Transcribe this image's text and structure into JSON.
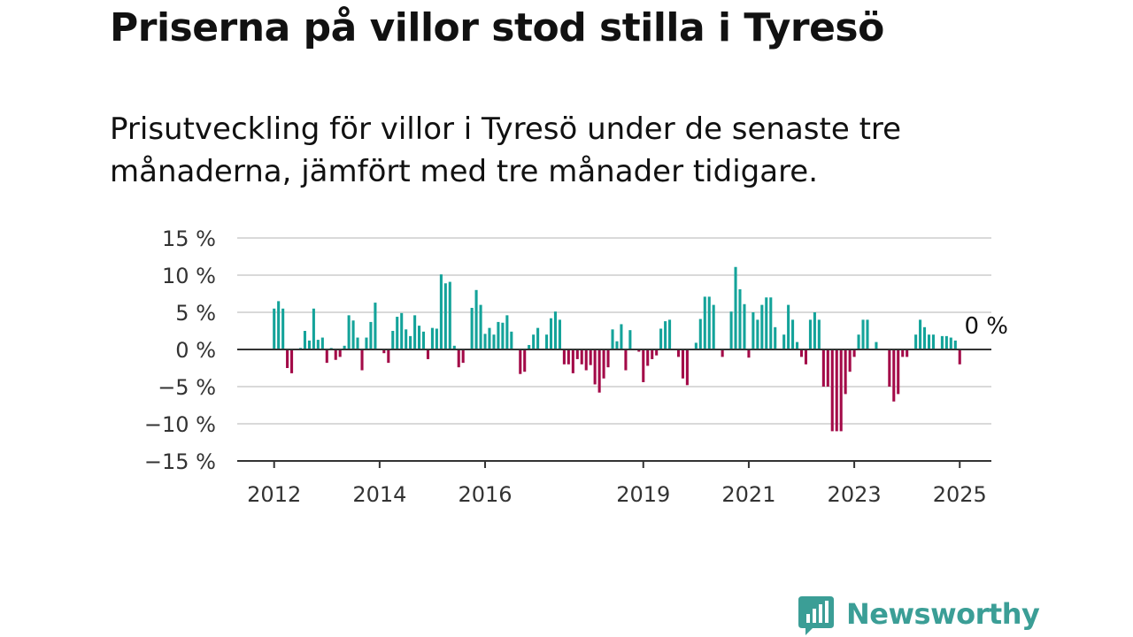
{
  "title": "Priserna på villor stod stilla i Tyresö",
  "subtitle": "Prisutveckling för villor i Tyresö under de senaste tre månaderna, jämfört med tre månader tidigare.",
  "brand": {
    "name": "Newsworthy",
    "icon": "newsworthy-logo-icon",
    "color": "#3b9e96"
  },
  "colors": {
    "positive": "#14a39a",
    "negative": "#a30a48",
    "grid": "#d9d9d9",
    "axis": "#333333"
  },
  "chart_data": {
    "type": "bar",
    "ylim": [
      -15,
      15
    ],
    "xlim": [
      2011.3,
      2025.6
    ],
    "y_ticks": [
      {
        "value": 15,
        "label": "15 %"
      },
      {
        "value": 10,
        "label": "10 %"
      },
      {
        "value": 5,
        "label": "5 %"
      },
      {
        "value": 0,
        "label": "0 %"
      },
      {
        "value": -5,
        "label": "−5 %"
      },
      {
        "value": -10,
        "label": "−10 %"
      },
      {
        "value": -15,
        "label": "−15 %"
      }
    ],
    "x_ticks": [
      {
        "value": 2012,
        "label": "2012"
      },
      {
        "value": 2014,
        "label": "2014"
      },
      {
        "value": 2016,
        "label": "2016"
      },
      {
        "value": 2019,
        "label": "2019"
      },
      {
        "value": 2021,
        "label": "2021"
      },
      {
        "value": 2023,
        "label": "2023"
      },
      {
        "value": 2025,
        "label": "2025"
      }
    ],
    "annotation": {
      "label": "0 %",
      "x": 2025.0,
      "y": 0
    },
    "x": [
      2012.0,
      2012.083,
      2012.167,
      2012.25,
      2012.333,
      2012.5,
      2012.583,
      2012.667,
      2012.75,
      2012.833,
      2012.917,
      2013.0,
      2013.083,
      2013.167,
      2013.25,
      2013.333,
      2013.417,
      2013.5,
      2013.583,
      2013.667,
      2013.75,
      2013.833,
      2013.917,
      2014.083,
      2014.167,
      2014.25,
      2014.333,
      2014.417,
      2014.5,
      2014.583,
      2014.667,
      2014.75,
      2014.833,
      2014.917,
      2015.0,
      2015.083,
      2015.167,
      2015.25,
      2015.333,
      2015.417,
      2015.5,
      2015.583,
      2015.667,
      2015.75,
      2015.833,
      2015.917,
      2016.0,
      2016.083,
      2016.167,
      2016.25,
      2016.333,
      2016.417,
      2016.5,
      2016.583,
      2016.667,
      2016.75,
      2016.833,
      2016.917,
      2017.0,
      2017.083,
      2017.167,
      2017.25,
      2017.333,
      2017.417,
      2017.5,
      2017.583,
      2017.667,
      2017.75,
      2017.833,
      2017.917,
      2018.0,
      2018.083,
      2018.167,
      2018.25,
      2018.333,
      2018.417,
      2018.5,
      2018.583,
      2018.667,
      2018.75,
      2018.833,
      2018.917,
      2019.0,
      2019.083,
      2019.167,
      2019.25,
      2019.333,
      2019.417,
      2019.5,
      2019.583,
      2019.667,
      2019.75,
      2019.833,
      2019.917,
      2020.0,
      2020.083,
      2020.167,
      2020.25,
      2020.333,
      2020.417,
      2020.5,
      2020.583,
      2020.667,
      2020.75,
      2020.833,
      2020.917,
      2021.0,
      2021.083,
      2021.167,
      2021.25,
      2021.333,
      2021.417,
      2021.5,
      2021.583,
      2021.667,
      2021.75,
      2021.833,
      2021.917,
      2022.0,
      2022.083,
      2022.167,
      2022.25,
      2022.333,
      2022.417,
      2022.5,
      2022.583,
      2022.667,
      2022.75,
      2022.833,
      2022.917,
      2023.0,
      2023.083,
      2023.167,
      2023.25,
      2023.333,
      2023.417,
      2023.5,
      2023.583,
      2023.667,
      2023.75,
      2023.833,
      2023.917,
      2024.0,
      2024.083,
      2024.167,
      2024.25,
      2024.333,
      2024.417,
      2024.5,
      2024.583,
      2024.667,
      2024.75,
      2024.833,
      2024.917,
      2025.0
    ],
    "values": [
      5.5,
      6.5,
      5.5,
      -2.5,
      -3.2,
      0.2,
      2.5,
      1.2,
      5.5,
      1.3,
      1.6,
      -1.8,
      0.2,
      -1.4,
      -1.0,
      0.5,
      4.6,
      3.9,
      1.6,
      -2.8,
      1.6,
      3.7,
      6.3,
      -0.5,
      -1.8,
      2.5,
      4.4,
      4.9,
      2.7,
      1.8,
      4.6,
      3.2,
      2.4,
      -1.3,
      2.9,
      2.8,
      10.1,
      8.9,
      9.1,
      0.5,
      -2.4,
      -1.8,
      0.1,
      5.6,
      8.0,
      6.0,
      2.1,
      2.9,
      2.0,
      3.7,
      3.6,
      4.6,
      2.4,
      0.1,
      -3.3,
      -3.0,
      0.6,
      2.0,
      2.9,
      0.1,
      2.0,
      4.2,
      5.1,
      4.0,
      -2.0,
      -2.0,
      -3.2,
      -1.3,
      -2.0,
      -2.8,
      -2.1,
      -4.7,
      -5.8,
      -3.9,
      -2.4,
      2.7,
      1.1,
      3.4,
      -2.8,
      2.6,
      0.1,
      -0.3,
      -4.4,
      -2.2,
      -1.3,
      -0.8,
      2.8,
      3.8,
      4.0,
      0.1,
      -1.0,
      -3.9,
      -4.8,
      0.1,
      0.9,
      4.1,
      7.1,
      7.1,
      6.0,
      0.1,
      -1.0,
      0.1,
      5.1,
      11.1,
      8.1,
      6.1,
      -1.1,
      5.0,
      4.0,
      6.0,
      7.0,
      7.0,
      3.0,
      0.1,
      2.0,
      6.0,
      4.0,
      1.0,
      -1.0,
      -2.0,
      4.0,
      5.0,
      4.0,
      -5.0,
      -5.0,
      -11.0,
      -11.0,
      -11.0,
      -6.0,
      -3.0,
      -1.0,
      2.0,
      4.0,
      4.0,
      0.1,
      1.0,
      0.1,
      0.1,
      -5.0,
      -7.0,
      -6.0,
      -1.0,
      -1.0,
      0.1,
      2.0,
      4.0,
      3.0,
      2.0,
      2.0,
      0.1,
      1.8,
      1.8,
      1.6,
      1.2,
      0.0
    ],
    "extra": [
      {
        "x": 2025.0,
        "value": -2.0
      }
    ]
  }
}
